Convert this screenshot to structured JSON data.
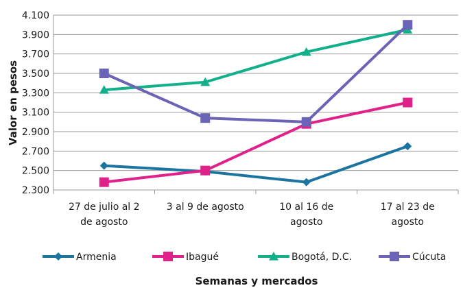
{
  "chart_data": {
    "type": "line",
    "title": "",
    "ylabel": "Valor en pesos",
    "xlabel": "Semanas y mercados",
    "categories": [
      [
        "27 de julio al 2",
        "de agosto"
      ],
      [
        "3 al 9 de agosto"
      ],
      [
        "10 al 16 de",
        "agosto"
      ],
      [
        "17 al 23 de",
        "agosto"
      ]
    ],
    "ylim": [
      2300,
      4100
    ],
    "yticks": [
      2300,
      2500,
      2700,
      2900,
      3100,
      3300,
      3500,
      3700,
      3900,
      4100
    ],
    "ytick_labels": [
      "2.300",
      "2.500",
      "2.700",
      "2.900",
      "3.100",
      "3.300",
      "3.500",
      "3.700",
      "3.900",
      "4.100"
    ],
    "grid": true,
    "legend_position": "bottom",
    "series": [
      {
        "name": "Armenia",
        "color": "#1B75A0",
        "marker": "diamond",
        "values": [
          2550,
          2490,
          2380,
          2750
        ]
      },
      {
        "name": "Ibagué",
        "color": "#E0218A",
        "marker": "square",
        "values": [
          2380,
          2500,
          2980,
          3200
        ]
      },
      {
        "name": "Bogotá, D.C.",
        "color": "#12B08A",
        "marker": "triangle",
        "values": [
          3330,
          3410,
          3720,
          3950
        ]
      },
      {
        "name": "Cúcuta",
        "color": "#6B63B5",
        "marker": "square",
        "values": [
          3500,
          3040,
          3000,
          4000
        ]
      }
    ]
  }
}
